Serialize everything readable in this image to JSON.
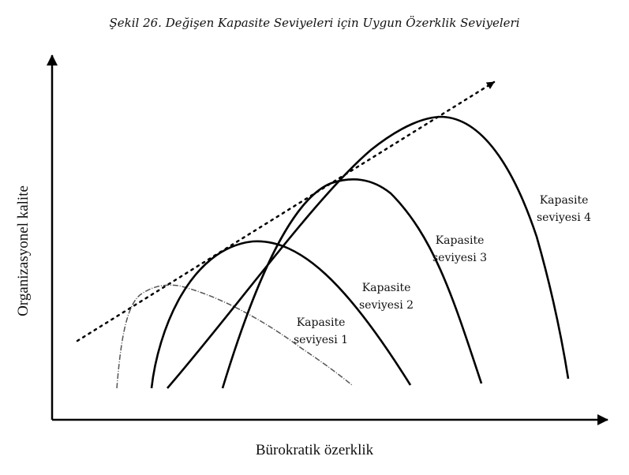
{
  "figure": {
    "caption": "Şekil 26. Değişen Kapasite Seviyeleri için Uygun Özerklik Seviyeleri",
    "x_axis_label": "Bürokratik özerklik",
    "y_axis_label": "Organizasyonel kalite",
    "curves": [
      {
        "line1": "Kapasite",
        "line2": "seviyesi 1"
      },
      {
        "line1": "Kapasite",
        "line2": "seviyesi 2"
      },
      {
        "line1": "Kapasite",
        "line2": "seviyesi 3"
      },
      {
        "line1": "Kapasite",
        "line2": "seviyesi 4"
      }
    ]
  }
}
